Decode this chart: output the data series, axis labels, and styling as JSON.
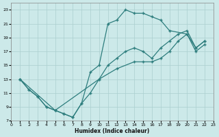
{
  "xlabel": "Humidex (Indice chaleur)",
  "bg_color": "#cce9e9",
  "grid_color": "#aacfcf",
  "line_color": "#2d7d7d",
  "xlim": [
    0,
    23
  ],
  "ylim": [
    7,
    24
  ],
  "xticks": [
    0,
    1,
    2,
    3,
    4,
    5,
    6,
    7,
    8,
    9,
    10,
    11,
    12,
    13,
    14,
    15,
    16,
    17,
    18,
    19,
    20,
    21,
    22,
    23
  ],
  "yticks": [
    7,
    9,
    11,
    13,
    15,
    17,
    19,
    21,
    23
  ],
  "series1_x": [
    1,
    2,
    3,
    4,
    5,
    6,
    7,
    8,
    9,
    10,
    11,
    12,
    13,
    14,
    15,
    16,
    17,
    18,
    20,
    21,
    22
  ],
  "series1_y": [
    13,
    11.5,
    10.5,
    9,
    8.5,
    8,
    7.5,
    9.5,
    14,
    15,
    21,
    21.5,
    23,
    22.5,
    22.5,
    22,
    21.5,
    20,
    19.5,
    17,
    18
  ],
  "series2_x": [
    1,
    2,
    3,
    4,
    5,
    6,
    7,
    8,
    9,
    10,
    11,
    12,
    13,
    14,
    15,
    16,
    17,
    18,
    19,
    20,
    21,
    22
  ],
  "series2_y": [
    13,
    11.5,
    10.5,
    9,
    8.5,
    8,
    7.5,
    9.5,
    11,
    13,
    15,
    16,
    17,
    17.5,
    17,
    16,
    17.5,
    18.5,
    19.5,
    20,
    17.5,
    18.5
  ],
  "series3_x": [
    1,
    5,
    10,
    12,
    14,
    15,
    16,
    17,
    18,
    19,
    20,
    21,
    22
  ],
  "series3_y": [
    13,
    8.5,
    13,
    14.5,
    15.5,
    15.5,
    15.5,
    16,
    17,
    18.5,
    19.5,
    17.5,
    18.5
  ]
}
